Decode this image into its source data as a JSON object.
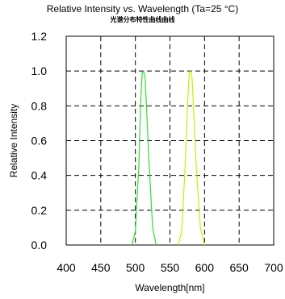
{
  "chart_data": {
    "type": "line",
    "title": "Relative Intensity vs. Wavelength (Ta=25 °C)",
    "subtitle": "光谱分布特性曲线曲线",
    "xlabel": "Wavelength[nm]",
    "ylabel": "Relative Intensity",
    "xlim": [
      400,
      700
    ],
    "ylim": [
      0.0,
      1.2
    ],
    "xticks": [
      400,
      450,
      500,
      550,
      600,
      650,
      700
    ],
    "xtick_labels": [
      "400",
      "450",
      "500",
      "550",
      "600",
      "650",
      "700"
    ],
    "yticks": [
      0.0,
      0.2,
      0.4,
      0.6,
      0.8,
      1.0,
      1.2
    ],
    "ytick_labels": [
      "0.0",
      "0.2",
      "0.4",
      "0.6",
      "0.8",
      "1.0",
      "1.2"
    ],
    "grid": true,
    "grid_style": "dashed",
    "series": [
      {
        "color": "#33dd33",
        "x": [
          495,
          500,
          505,
          508,
          510,
          512,
          514,
          516,
          520,
          525,
          530
        ],
        "y": [
          0.0,
          0.08,
          0.45,
          0.85,
          0.99,
          1.0,
          0.96,
          0.8,
          0.45,
          0.1,
          0.0
        ]
      },
      {
        "color": "#c8f000",
        "x": [
          562,
          567,
          572,
          576,
          578,
          580,
          582,
          584,
          588,
          594,
          600
        ],
        "y": [
          0.0,
          0.08,
          0.45,
          0.85,
          0.99,
          1.0,
          0.96,
          0.8,
          0.45,
          0.1,
          0.0
        ]
      }
    ]
  }
}
